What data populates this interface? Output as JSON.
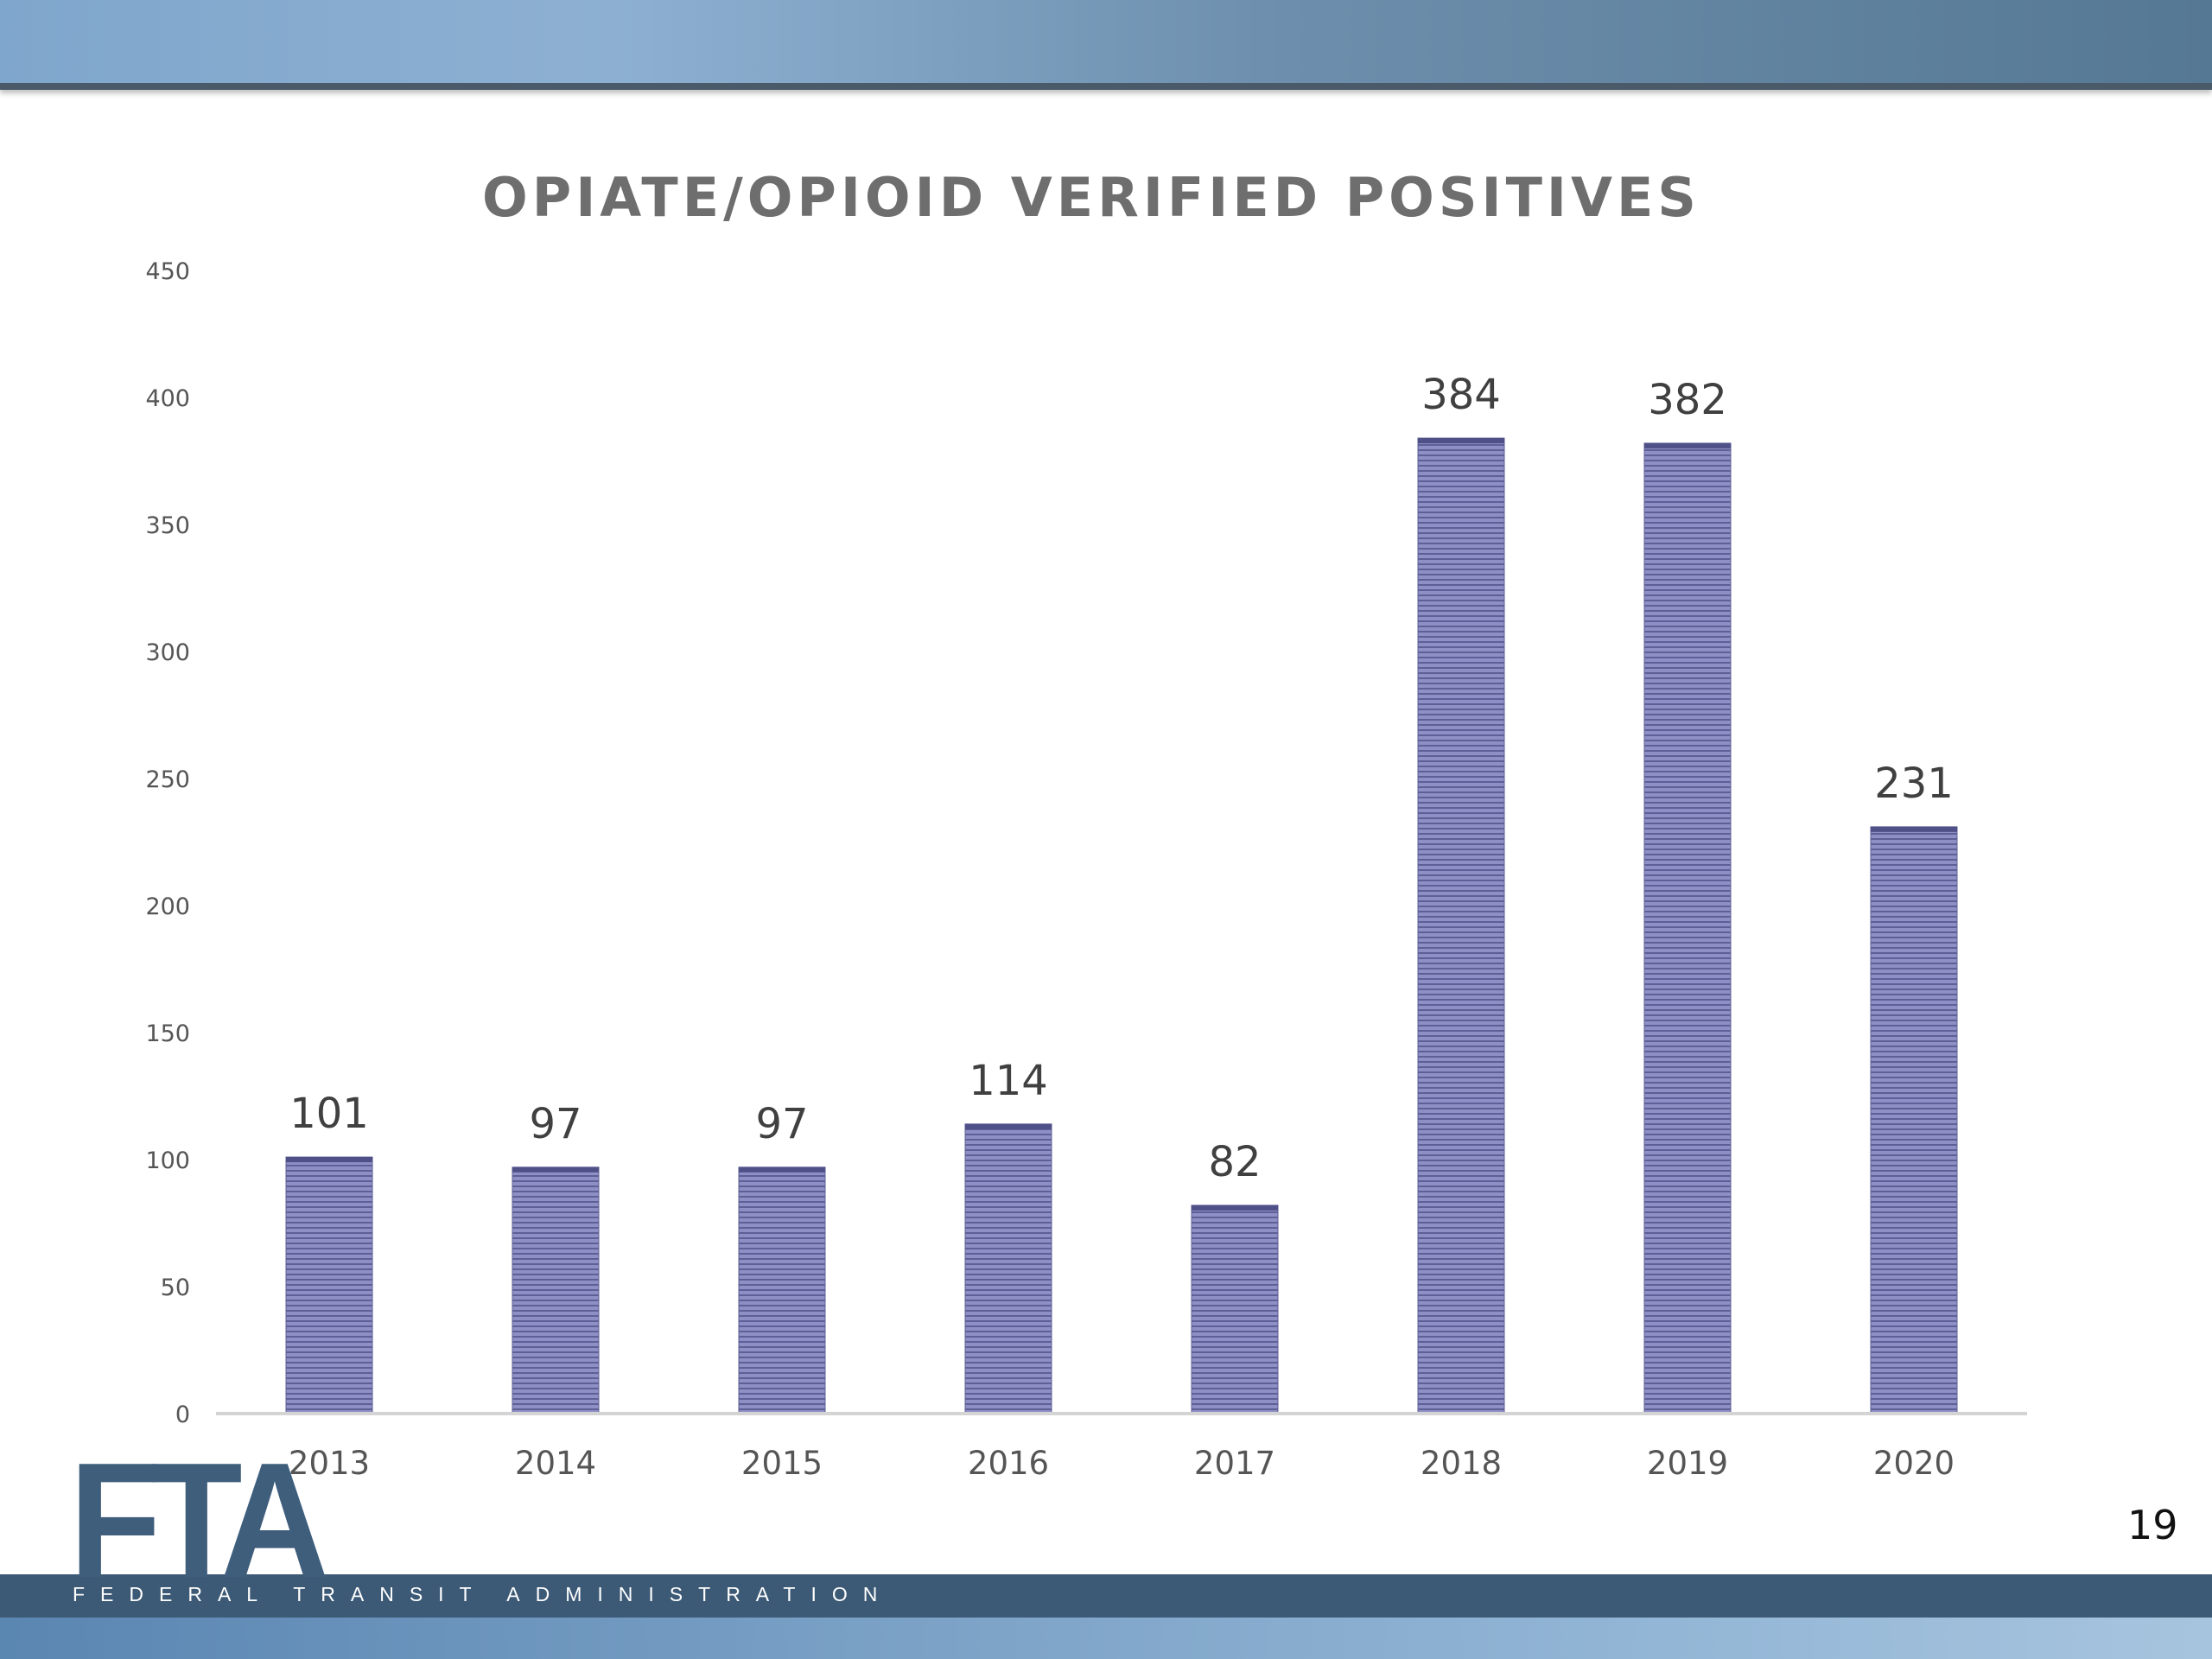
{
  "slide": {
    "page_number": "19",
    "logo": {
      "mark": "FTA",
      "subtitle": "FEDERAL TRANSIT ADMINISTRATION"
    }
  },
  "colors": {
    "bar_fill": "#8e8fc4",
    "bar_stripe": "#5e5f96",
    "banner": "#6d8fad",
    "bottom_bar": "#3c5a76",
    "logo": "#3f5e7c"
  },
  "chart_data": {
    "type": "bar",
    "title": "OPIATE/OPIOID VERIFIED POSITIVES",
    "xlabel": "",
    "ylabel": "",
    "categories": [
      "2013",
      "2014",
      "2015",
      "2016",
      "2017",
      "2018",
      "2019",
      "2020"
    ],
    "values": [
      101,
      97,
      97,
      114,
      82,
      384,
      382,
      231
    ],
    "data_labels": [
      "101",
      "97",
      "97",
      "114",
      "82",
      "384",
      "382",
      "231"
    ],
    "ylim": [
      0,
      450
    ],
    "yticks": [
      "0",
      "50",
      "100",
      "150",
      "200",
      "250",
      "300",
      "350",
      "400",
      "450"
    ],
    "grid": false,
    "legend": "none"
  }
}
